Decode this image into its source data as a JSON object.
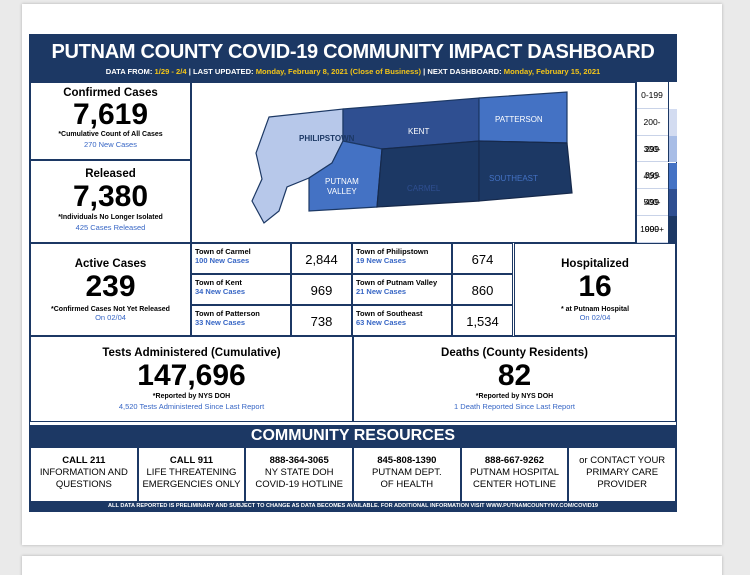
{
  "header": {
    "title": "PUTNAM COUNTY COVID-19 COMMUNITY IMPACT DASHBOARD",
    "data_from_label": "DATA FROM:",
    "data_from": "1/29 - 2/4",
    "last_updated_label": "| LAST UPDATED:",
    "last_updated": "Monday, February 8, 2021 (Close of Business)",
    "next_label": "| NEXT DASHBOARD:",
    "next": "Monday, February 15, 2021"
  },
  "confirmed": {
    "label": "Confirmed Cases",
    "value": "7,619",
    "note": "*Cumulative Count of All Cases",
    "sub": "270 New Cases"
  },
  "released": {
    "label": "Released",
    "value": "7,380",
    "note": "*Individuals No Longer Isolated",
    "sub": "425 Cases Released"
  },
  "map": {
    "regions": [
      "PHILIPSTOWN",
      "KENT",
      "PATTERSON",
      "PUTNAM",
      "VALLEY",
      "CARMEL",
      "SOUTHEAST"
    ]
  },
  "legend": {
    "items": [
      {
        "label": "0-199",
        "color": "#ffffff"
      },
      {
        "label": "200-299",
        "color": "#d3dcf1"
      },
      {
        "label": "300-399",
        "color": "#a8bde6"
      },
      {
        "label": "400-499",
        "color": "#4472c4"
      },
      {
        "label": "500-999",
        "color": "#2f4f91"
      },
      {
        "label": "1000+",
        "color": "#1c3864"
      }
    ]
  },
  "active": {
    "label": "Active Cases",
    "value": "239",
    "note": "*Confirmed Cases Not Yet Released",
    "sub": "On 02/04"
  },
  "towns": [
    {
      "name": "Town of Carmel",
      "new": "100 New Cases",
      "value": "2,844"
    },
    {
      "name": "Town of Philipstown",
      "new": "19 New Cases",
      "value": "674"
    },
    {
      "name": "Town of Kent",
      "new": "34 New Cases",
      "value": "969"
    },
    {
      "name": "Town of Putnam Valley",
      "new": "21 New Cases",
      "value": "860"
    },
    {
      "name": "Town of Patterson",
      "new": "33 New Cases",
      "value": "738"
    },
    {
      "name": "Town of Southeast",
      "new": "63 New Cases",
      "value": "1,534"
    }
  ],
  "hospitalized": {
    "label": "Hospitalized",
    "value": "16",
    "note": "* at Putnam Hospital",
    "sub": "On 02/04"
  },
  "tests": {
    "label": "Tests Administered (Cumulative)",
    "value": "147,696",
    "note": "*Reported by NYS DOH",
    "sub": "4,520 Tests Administered Since Last Report"
  },
  "deaths": {
    "label": "Deaths (County Residents)",
    "value": "82",
    "note": "*Reported by NYS DOH",
    "sub": "1 Death Reported Since Last Report"
  },
  "resources": {
    "title": "COMMUNITY RESOURCES",
    "items": [
      {
        "head": "CALL 211",
        "l1": "INFORMATION AND",
        "l2": "QUESTIONS"
      },
      {
        "head": "CALL 911",
        "l1": "LIFE THREATENING",
        "l2": "EMERGENCIES ONLY"
      },
      {
        "head": "888-364-3065",
        "l1": "NY STATE DOH",
        "l2": "COVID-19 HOTLINE"
      },
      {
        "head": "845-808-1390",
        "l1": "PUTNAM DEPT.",
        "l2": "OF HEALTH"
      },
      {
        "head": "888-667-9262",
        "l1": "PUTNAM HOSPITAL",
        "l2": "CENTER HOTLINE"
      },
      {
        "head": "or CONTACT YOUR",
        "l1": "PRIMARY CARE",
        "l2": "PROVIDER"
      }
    ]
  },
  "footer": "ALL DATA REPORTED IS PRELIMINARY AND SUBJECT TO CHANGE AS DATA BECOMES AVAILABLE. FOR ADDITIONAL INFORMATION VISIT WWW.PUTNAMCOUNTYNY.COM/COVID19"
}
